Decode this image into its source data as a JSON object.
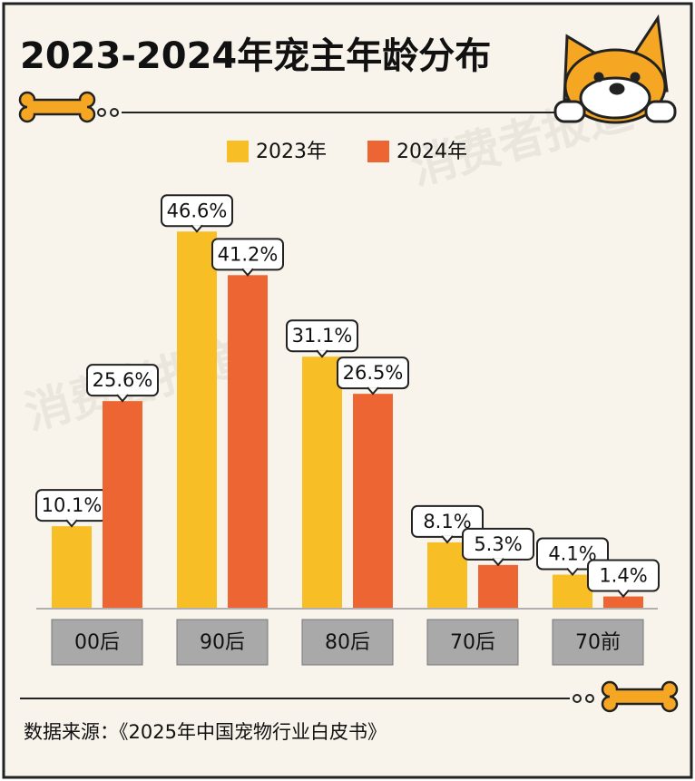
{
  "chart_data": {
    "type": "bar",
    "title": "2023-2024年宠主年龄分布",
    "categories": [
      "00后",
      "90后",
      "80后",
      "70后",
      "70前"
    ],
    "series": [
      {
        "name": "2023年",
        "color": "#f7bf25",
        "values": [
          10.1,
          46.6,
          31.1,
          8.1,
          4.1
        ],
        "value_labels": [
          "10.1%",
          "46.6%",
          "31.1%",
          "8.1%",
          "4.1%"
        ]
      },
      {
        "name": "2024年",
        "color": "#ec6532",
        "values": [
          25.6,
          41.2,
          26.5,
          5.3,
          1.4
        ],
        "value_labels": [
          "25.6%",
          "41.2%",
          "26.5%",
          "5.3%",
          "1.4%"
        ]
      }
    ],
    "source": "数据来源：《2025年中国宠物行业白皮书》",
    "watermark": "消费者报道"
  }
}
